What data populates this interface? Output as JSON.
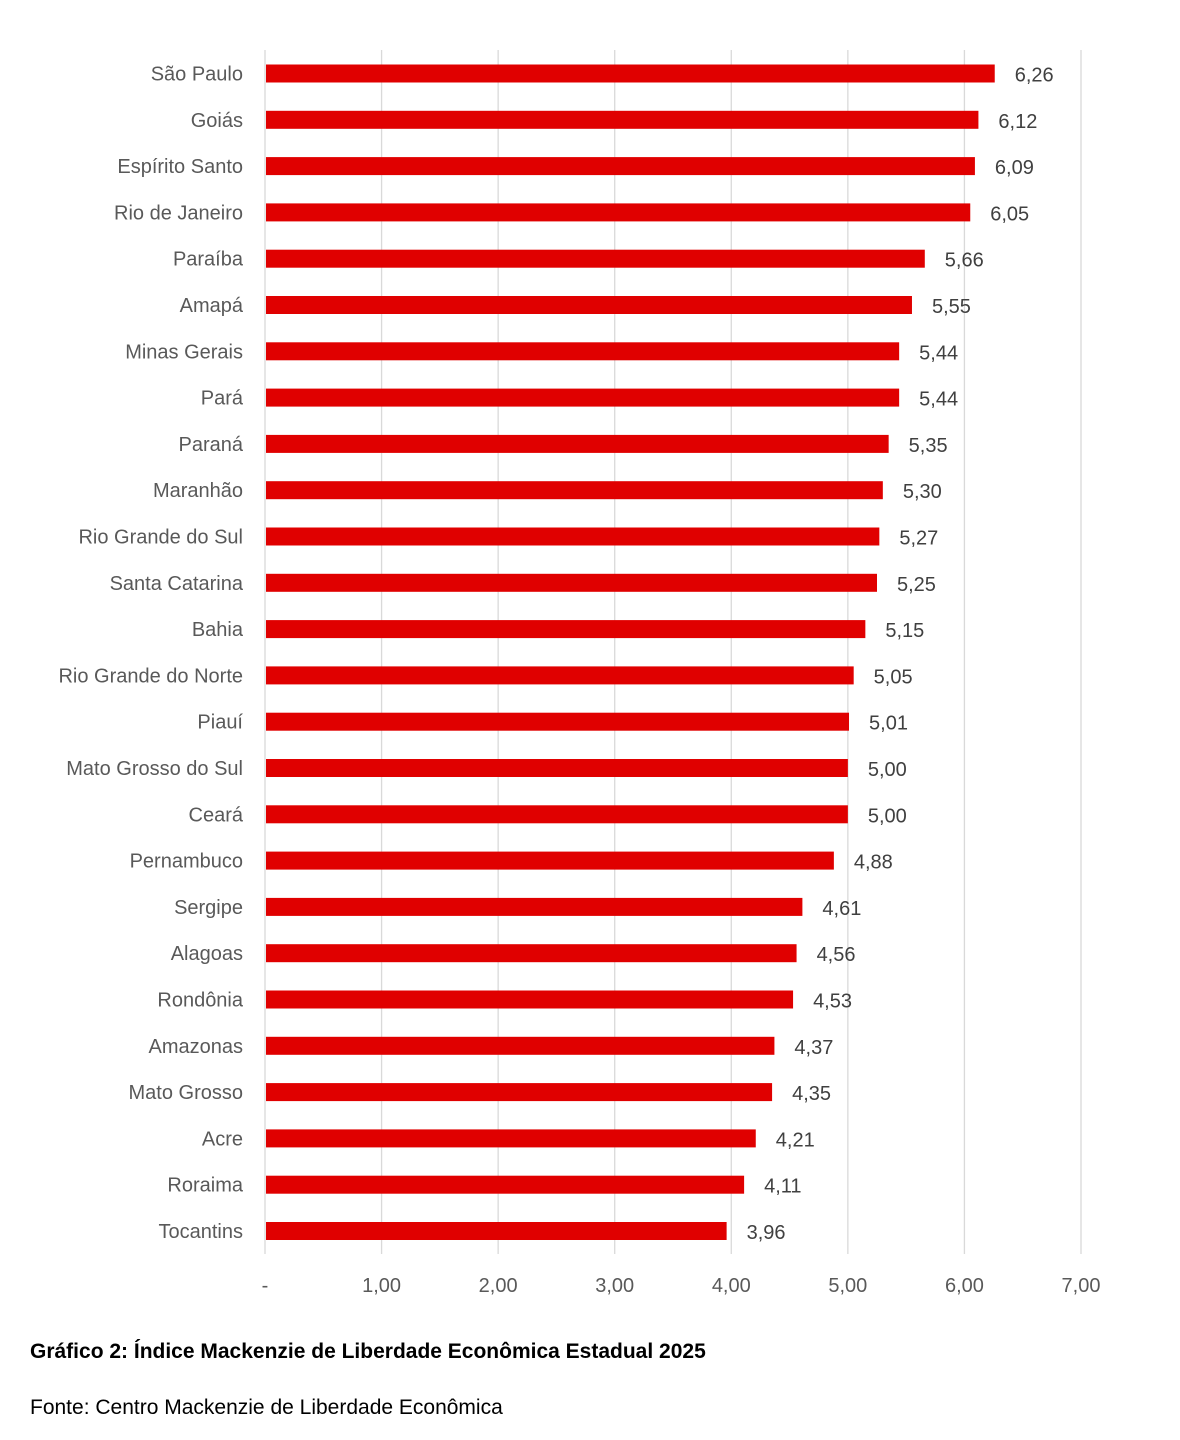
{
  "chart_data": {
    "type": "bar",
    "orientation": "horizontal",
    "categories": [
      "São Paulo",
      "Goiás",
      "Espírito Santo",
      "Rio de Janeiro",
      "Paraíba",
      "Amapá",
      "Minas Gerais",
      "Pará",
      "Paraná",
      "Maranhão",
      "Rio Grande do Sul",
      "Santa Catarina",
      "Bahia",
      "Rio Grande do Norte",
      "Piauí",
      "Mato Grosso do Sul",
      "Ceará",
      "Pernambuco",
      "Sergipe",
      "Alagoas",
      "Rondônia",
      "Amazonas",
      "Mato Grosso",
      "Acre",
      "Roraima",
      "Tocantins"
    ],
    "values": [
      6.26,
      6.12,
      6.09,
      6.05,
      5.66,
      5.55,
      5.44,
      5.44,
      5.35,
      5.3,
      5.27,
      5.25,
      5.15,
      5.05,
      5.01,
      5.0,
      5.0,
      4.88,
      4.61,
      4.56,
      4.53,
      4.37,
      4.35,
      4.21,
      4.11,
      3.96
    ],
    "value_labels": [
      "6,26",
      "6,12",
      "6,09",
      "6,05",
      "5,66",
      "5,55",
      "5,44",
      "5,44",
      "5,35",
      "5,30",
      "5,27",
      "5,25",
      "5,15",
      "5,05",
      "5,01",
      "5,00",
      "5,00",
      "4,88",
      "4,61",
      "4,56",
      "4,53",
      "4,37",
      "4,35",
      "4,21",
      "4,11",
      "3,96"
    ],
    "xlim": [
      0,
      7
    ],
    "x_ticks": [
      0,
      1,
      2,
      3,
      4,
      5,
      6,
      7
    ],
    "x_tick_labels": [
      "-",
      "1,00",
      "2,00",
      "3,00",
      "4,00",
      "5,00",
      "6,00",
      "7,00"
    ],
    "grid": "vertical",
    "xlabel": "",
    "ylabel": "",
    "bar_color": "#e00000",
    "grid_color": "#d9d9d9"
  },
  "caption": "Gráfico 2: Índice Mackenzie de Liberdade Econômica Estadual 2025",
  "source": "Fonte: Centro Mackenzie de Liberdade Econômica"
}
